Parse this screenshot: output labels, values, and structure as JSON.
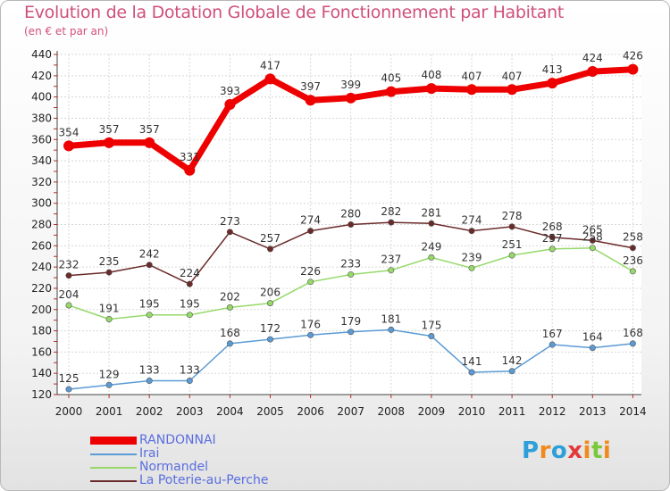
{
  "title": "Evolution de la Dotation Globale de Fonctionnement par Habitant",
  "subtitle": "(en € et par an)",
  "brand": {
    "letters": [
      "P",
      "r",
      "o",
      "x",
      "i",
      "t",
      "i"
    ],
    "colors": [
      "#2e9fd8",
      "#f08a1c",
      "#2e9fd8",
      "#e23a3a",
      "#f08a1c",
      "#7cc83a",
      "#f08a1c"
    ]
  },
  "chart_data": {
    "type": "line",
    "title": "Evolution de la Dotation Globale de Fonctionnement par Habitant",
    "ylabel": "(en € et par an)",
    "xlabel": "",
    "x": [
      "2000",
      "2001",
      "2002",
      "2003",
      "2004",
      "2005",
      "2006",
      "2007",
      "2008",
      "2009",
      "2010",
      "2011",
      "2012",
      "2013",
      "2014"
    ],
    "ylim": [
      120,
      440
    ],
    "yticks": [
      120,
      140,
      160,
      180,
      200,
      220,
      240,
      260,
      280,
      300,
      320,
      340,
      360,
      380,
      400,
      420,
      440
    ],
    "grid": true,
    "legend_position": "bottom-left",
    "series": [
      {
        "name": "RANDONNAI",
        "color": "#ee0000",
        "values": [
          354,
          357,
          357,
          331,
          393,
          417,
          397,
          399,
          405,
          408,
          407,
          407,
          413,
          424,
          426
        ]
      },
      {
        "name": "Irai",
        "color": "#5b9bd5",
        "values": [
          125,
          129,
          133,
          133,
          168,
          172,
          176,
          179,
          181,
          175,
          141,
          142,
          167,
          164,
          168
        ]
      },
      {
        "name": "Normandel",
        "color": "#96d96a",
        "values": [
          204,
          191,
          195,
          195,
          202,
          206,
          226,
          233,
          237,
          249,
          239,
          251,
          257,
          258,
          236
        ]
      },
      {
        "name": "La Poterie-au-Perche",
        "color": "#6b2a2a",
        "values": [
          232,
          235,
          242,
          224,
          273,
          257,
          274,
          280,
          282,
          281,
          274,
          278,
          268,
          265,
          258
        ]
      }
    ]
  }
}
